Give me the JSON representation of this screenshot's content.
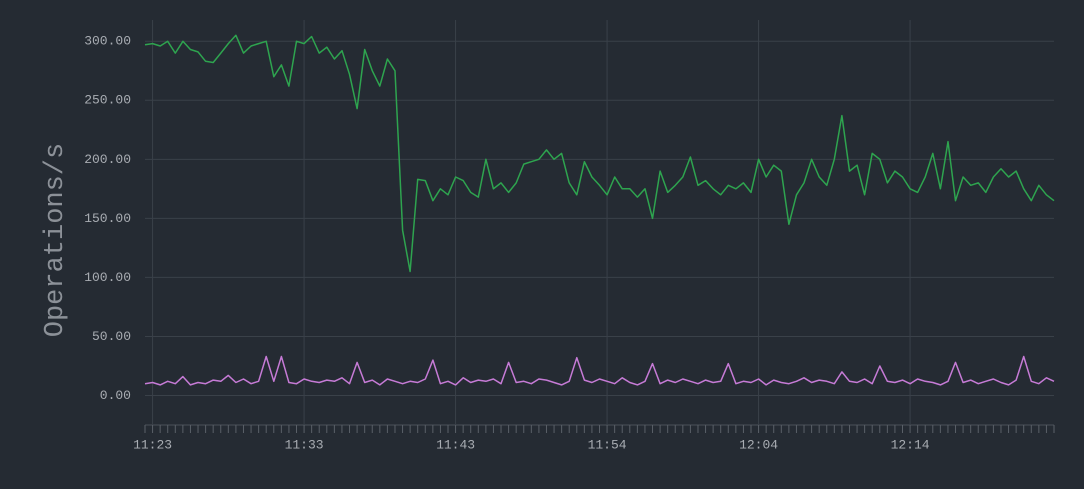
{
  "chart_data": {
    "type": "line",
    "y_label": "Operations/s",
    "categories": [
      null,
      "11:23",
      null,
      null,
      null,
      null,
      null,
      null,
      null,
      null,
      null,
      null,
      null,
      null,
      null,
      null,
      null,
      null,
      null,
      null,
      null,
      "11:33",
      null,
      null,
      null,
      null,
      null,
      null,
      null,
      null,
      null,
      null,
      null,
      null,
      null,
      null,
      null,
      null,
      null,
      null,
      null,
      "11:43",
      null,
      null,
      null,
      null,
      null,
      null,
      null,
      null,
      null,
      null,
      null,
      null,
      null,
      null,
      null,
      null,
      null,
      null,
      null,
      "11:54",
      null,
      null,
      null,
      null,
      null,
      null,
      null,
      null,
      null,
      null,
      null,
      null,
      null,
      null,
      null,
      null,
      null,
      null,
      null,
      "12:04",
      null,
      null,
      null,
      null,
      null,
      null,
      null,
      null,
      null,
      null,
      null,
      null,
      null,
      null,
      null,
      null,
      null,
      null,
      null,
      "12:14",
      null,
      null,
      null,
      null,
      null,
      null,
      null,
      null,
      null,
      null,
      null,
      null,
      null,
      null,
      null,
      null,
      null,
      null,
      null
    ],
    "series": [
      {
        "color": "#2ea44f",
        "values": [
          297,
          298,
          296,
          300,
          290,
          300,
          293,
          291,
          283,
          282,
          290,
          298,
          305,
          290,
          296,
          298,
          300,
          270,
          280,
          262,
          300,
          298,
          304,
          290,
          295,
          285,
          292,
          272,
          243,
          293,
          275,
          262,
          285,
          275,
          140,
          105,
          183,
          182,
          165,
          175,
          170,
          185,
          182,
          172,
          168,
          200,
          175,
          180,
          172,
          180,
          196,
          198,
          200,
          208,
          200,
          205,
          180,
          170,
          198,
          185,
          178,
          170,
          185,
          175,
          175,
          168,
          175,
          150,
          190,
          172,
          178,
          185,
          202,
          178,
          182,
          175,
          170,
          178,
          175,
          180,
          172,
          200,
          185,
          195,
          190,
          145,
          170,
          180,
          200,
          185,
          178,
          200,
          237,
          190,
          195,
          170,
          205,
          200,
          180,
          190,
          185,
          175,
          172,
          185,
          205,
          175,
          215,
          165,
          185,
          178,
          180,
          172,
          185,
          192,
          185,
          190,
          175,
          165,
          178,
          170,
          165
        ]
      },
      {
        "color": "#c67bd6",
        "values": [
          10,
          11,
          9,
          12,
          10,
          16,
          9,
          11,
          10,
          13,
          12,
          17,
          11,
          14,
          10,
          12,
          33,
          12,
          33,
          11,
          10,
          14,
          12,
          11,
          13,
          12,
          15,
          10,
          28,
          11,
          13,
          9,
          14,
          12,
          10,
          12,
          11,
          14,
          30,
          10,
          12,
          9,
          15,
          11,
          13,
          12,
          14,
          10,
          28,
          11,
          12,
          10,
          14,
          13,
          11,
          9,
          12,
          32,
          13,
          11,
          14,
          12,
          10,
          15,
          11,
          9,
          12,
          27,
          10,
          13,
          11,
          14,
          12,
          10,
          13,
          11,
          12,
          27,
          10,
          12,
          11,
          14,
          9,
          13,
          11,
          10,
          12,
          15,
          11,
          13,
          12,
          10,
          20,
          12,
          11,
          14,
          10,
          25,
          12,
          11,
          13,
          10,
          14,
          12,
          11,
          9,
          12,
          28,
          11,
          13,
          10,
          12,
          14,
          11,
          9,
          13,
          33,
          12,
          10,
          15,
          12
        ]
      }
    ],
    "ylim": [
      -25,
      318
    ],
    "yticks": [
      {
        "value": 0,
        "label": "0.00"
      },
      {
        "value": 50,
        "label": "50.00"
      },
      {
        "value": 100,
        "label": "100.00"
      },
      {
        "value": 150,
        "label": "150.00"
      },
      {
        "value": 200,
        "label": "200.00"
      },
      {
        "value": 250,
        "label": "250.00"
      },
      {
        "value": 300,
        "label": "300.00"
      }
    ],
    "grid": true
  }
}
